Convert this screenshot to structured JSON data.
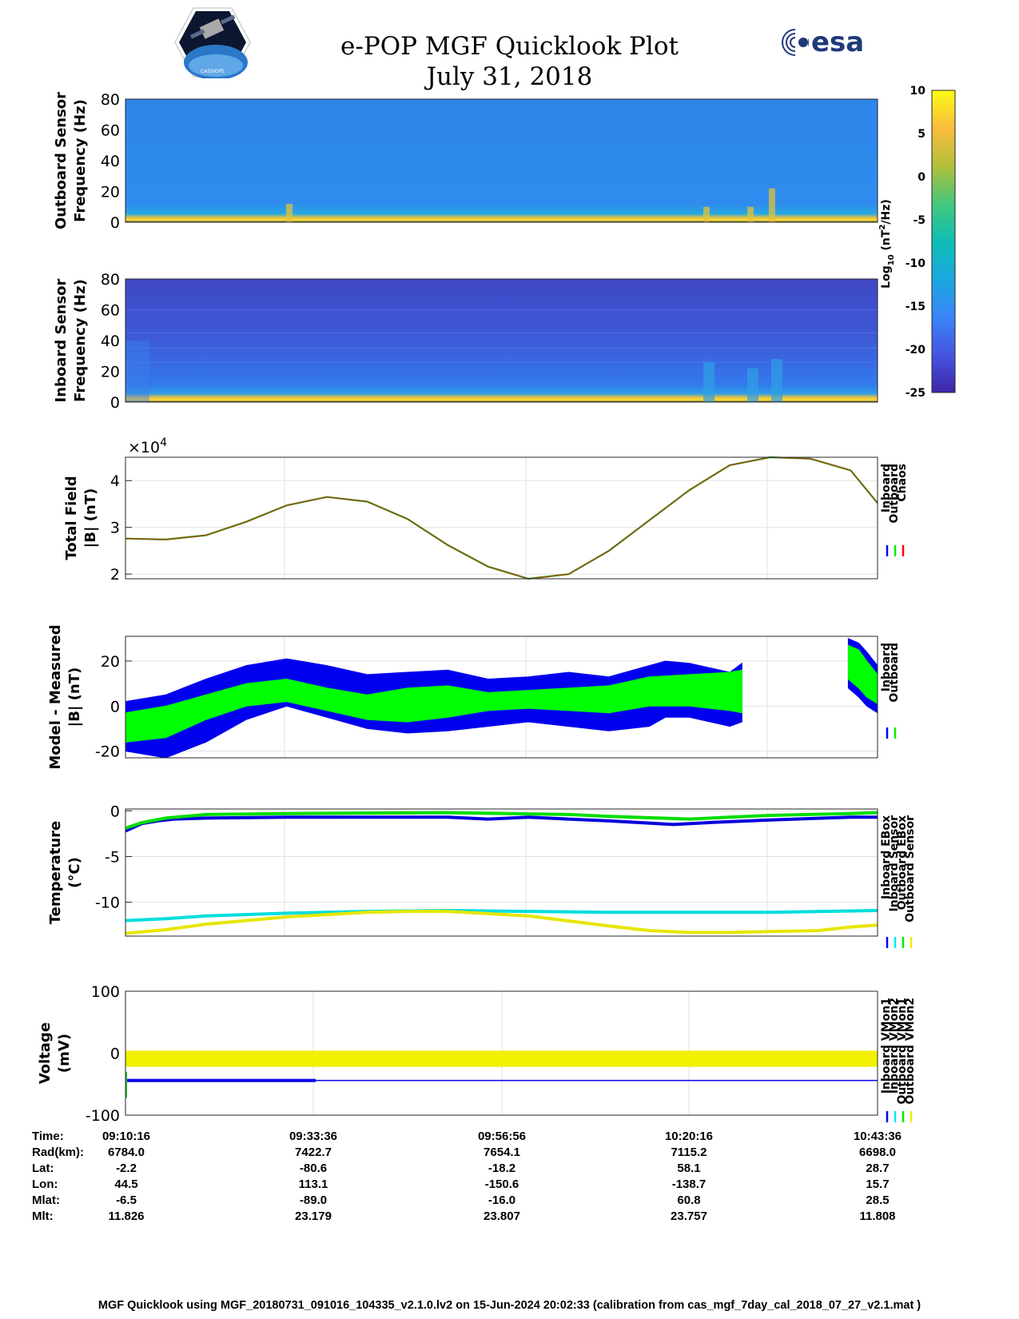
{
  "header": {
    "title": "e-POP MGF Quicklook Plot",
    "date": "July 31, 2018",
    "esa_logo_text": "esa",
    "cassiope_logo_text": "CASSIOPE"
  },
  "colorbar": {
    "ticks": [
      10,
      5,
      0,
      -5,
      -10,
      -15,
      -20,
      -25
    ],
    "label_prefix": "Log",
    "label_sub": "10",
    "label_mid": " (nT",
    "label_sup": "2",
    "label_suffix": "/Hz)"
  },
  "footer": "MGF Quicklook using MGF_20180731_091016_104335_v2.1.0.lv2 on 15-Jun-2024 20:02:33 (calibration from cas_mgf_7day_cal_2018_07_27_v2.1.mat )",
  "ephemeris": {
    "labels": [
      "Time:",
      "Rad(km):",
      "Lat:",
      "Lon:",
      "Mlat:",
      "Mlt:"
    ],
    "columns": [
      [
        "09:10:16",
        "6784.0",
        "-2.2",
        "44.5",
        "-6.5",
        "11.826"
      ],
      [
        "09:33:36",
        "7422.7",
        "-80.6",
        "113.1",
        "-89.0",
        "23.179"
      ],
      [
        "09:56:56",
        "7654.1",
        "-18.2",
        "-150.6",
        "-16.0",
        "23.807"
      ],
      [
        "10:20:16",
        "7115.2",
        "58.1",
        "-138.7",
        "60.8",
        "23.757"
      ],
      [
        "10:43:36",
        "6698.0",
        "28.7",
        "15.7",
        "28.5",
        "11.808"
      ]
    ]
  },
  "chart_data": [
    {
      "type": "heatmap",
      "ylabel": [
        "Outboard Sensor",
        "Frequency (Hz)"
      ],
      "ylim": [
        0,
        80
      ],
      "yticks": [
        0,
        20,
        40,
        60,
        80
      ],
      "colorbar_range": [
        -25,
        10
      ]
    },
    {
      "type": "heatmap",
      "ylabel": [
        "Inboard Sensor",
        "Frequency (Hz)"
      ],
      "ylim": [
        0,
        80
      ],
      "yticks": [
        0,
        20,
        40,
        60,
        80
      ],
      "colorbar_range": [
        -25,
        10
      ]
    },
    {
      "type": "line",
      "ylabel": [
        "Total Field",
        "|B| (nT)"
      ],
      "scale_label": "×10",
      "scale_exp": "4",
      "ylim": [
        1.9,
        4.5
      ],
      "yticks": [
        2,
        3,
        4
      ],
      "xlim": [
        0,
        93.33
      ],
      "x_unit": "minutes after 09:10:16",
      "legend": [
        "Inboard",
        "Outboard",
        "Chaos"
      ],
      "legend_colors": [
        "#0000ff",
        "#00ee00",
        "#ff0000"
      ],
      "series": [
        {
          "name": "Chaos",
          "color": "#b04a00",
          "x": [
            0,
            5,
            10,
            15,
            20,
            25,
            30,
            35,
            40,
            45,
            50,
            55,
            60,
            65,
            70,
            75,
            80,
            85,
            90,
            93.33
          ],
          "y": [
            2.76,
            2.74,
            2.83,
            3.12,
            3.47,
            3.65,
            3.55,
            3.18,
            2.62,
            2.16,
            1.9,
            2.0,
            2.5,
            3.15,
            3.8,
            4.33,
            4.5,
            4.47,
            4.22,
            3.52
          ]
        }
      ]
    },
    {
      "type": "area",
      "ylabel": [
        "Model - Measured",
        "|B| (nT)"
      ],
      "ylim": [
        -23,
        31
      ],
      "yticks": [
        -20,
        0,
        20
      ],
      "xlim": [
        0,
        93.33
      ],
      "legend": [
        "Inboard",
        "Outboard"
      ],
      "legend_colors": [
        "#0000ff",
        "#00ee00"
      ],
      "series": [
        {
          "name": "Inboard",
          "color": "#0000ee",
          "segments": [
            {
              "x": [
                0,
                5,
                10,
                15,
                20,
                25,
                30,
                35,
                40,
                45,
                50,
                55,
                60,
                65,
                67,
                70,
                75,
                76.5
              ],
              "upper": [
                2,
                5,
                12,
                18,
                21,
                18,
                14,
                15,
                16,
                12,
                13,
                15,
                13,
                18,
                20,
                19,
                15,
                19
              ],
              "lower": [
                -20,
                -23,
                -16,
                -6,
                0,
                -5,
                -10,
                -12,
                -11,
                -9,
                -7,
                -9,
                -11,
                -9,
                -5,
                -5,
                -9,
                -7
              ]
            },
            {
              "x": [
                89.7,
                91,
                92,
                93.33
              ],
              "upper": [
                30,
                28,
                24,
                18
              ],
              "lower": [
                8,
                4,
                0,
                -3
              ]
            }
          ]
        },
        {
          "name": "Outboard",
          "color": "#00ff00",
          "segments": [
            {
              "x": [
                0,
                5,
                10,
                15,
                20,
                25,
                30,
                35,
                40,
                45,
                50,
                55,
                60,
                65,
                70,
                75,
                76.5
              ],
              "upper": [
                -3,
                0,
                5,
                10,
                12,
                8,
                5,
                8,
                9,
                6,
                7,
                8,
                9,
                13,
                14,
                15,
                16
              ],
              "lower": [
                -16,
                -14,
                -6,
                0,
                2,
                -2,
                -6,
                -7,
                -5,
                -2,
                -1,
                -2,
                -3,
                0,
                0,
                -2,
                -3
              ]
            },
            {
              "x": [
                89.7,
                91,
                92,
                93.33
              ],
              "upper": [
                27,
                25,
                20,
                14
              ],
              "lower": [
                12,
                8,
                4,
                1
              ]
            }
          ]
        }
      ]
    },
    {
      "type": "line",
      "ylabel": [
        "Temperature",
        "(°C)"
      ],
      "ylim": [
        -13.7,
        0.2
      ],
      "yticks": [
        -10,
        -5,
        0
      ],
      "xlim": [
        0,
        93.33
      ],
      "legend": [
        "Inboard EBox",
        "Inboard Sensor",
        "Outboard EBox",
        "Outboard Sensor"
      ],
      "legend_colors": [
        "#0000ff",
        "#00eeee",
        "#00ee00",
        "#eeee00"
      ],
      "series": [
        {
          "name": "Inboard EBox",
          "color": "#0000dd",
          "x": [
            0,
            1,
            2,
            4,
            6,
            10,
            20,
            40,
            45,
            50,
            55,
            60,
            68,
            72,
            80,
            90,
            93.33
          ],
          "y": [
            -2.2,
            -1.8,
            -1.4,
            -1.1,
            -0.9,
            -0.8,
            -0.7,
            -0.7,
            -0.9,
            -0.7,
            -0.9,
            -1.1,
            -1.5,
            -1.3,
            -1.0,
            -0.7,
            -0.7
          ]
        },
        {
          "name": "Outboard EBox",
          "color": "#00dd00",
          "x": [
            0,
            2,
            5,
            10,
            20,
            40,
            55,
            60,
            70,
            75,
            80,
            90,
            93.33
          ],
          "y": [
            -1.9,
            -1.3,
            -0.8,
            -0.4,
            -0.3,
            -0.2,
            -0.4,
            -0.6,
            -0.9,
            -0.7,
            -0.5,
            -0.3,
            -0.2
          ]
        },
        {
          "name": "Inboard Sensor",
          "color": "#00dddd",
          "x": [
            0,
            5,
            10,
            20,
            30,
            40,
            50,
            60,
            70,
            80,
            93.33
          ],
          "y": [
            -12.0,
            -11.8,
            -11.5,
            -11.2,
            -11.0,
            -10.9,
            -11.0,
            -11.1,
            -11.1,
            -11.1,
            -10.9
          ]
        },
        {
          "name": "Outboard Sensor",
          "color": "#e6e600",
          "x": [
            0,
            5,
            10,
            20,
            30,
            35,
            40,
            50,
            60,
            65,
            70,
            75,
            80,
            86,
            90,
            93.33
          ],
          "y": [
            -13.4,
            -13.0,
            -12.4,
            -11.6,
            -11.1,
            -11.0,
            -11.0,
            -11.5,
            -12.6,
            -13.1,
            -13.3,
            -13.3,
            -13.2,
            -13.1,
            -12.7,
            -12.5
          ]
        }
      ]
    },
    {
      "type": "area",
      "ylabel": [
        "Voltage",
        "(mV)"
      ],
      "ylim": [
        -100,
        100
      ],
      "yticks": [
        -100,
        0,
        100
      ],
      "xlim": [
        0,
        93.33
      ],
      "legend": [
        "Inboard VMon1",
        "Inboard VMon2",
        "Outboard VMon1",
        "Outboard VMon2"
      ],
      "legend_colors": [
        "#0000ff",
        "#00eeee",
        "#00ee00",
        "#eeee00"
      ],
      "series": [
        {
          "name": "Outboard VMon2",
          "color": "#f0f000",
          "x": [
            0,
            93.33
          ],
          "upper": [
            4,
            4
          ],
          "lower": [
            -22,
            -22
          ]
        },
        {
          "name": "Inboard VMon1",
          "color": "#0000ee",
          "x": [
            0,
            93.33
          ],
          "y": [
            -44,
            -44
          ]
        }
      ]
    }
  ]
}
